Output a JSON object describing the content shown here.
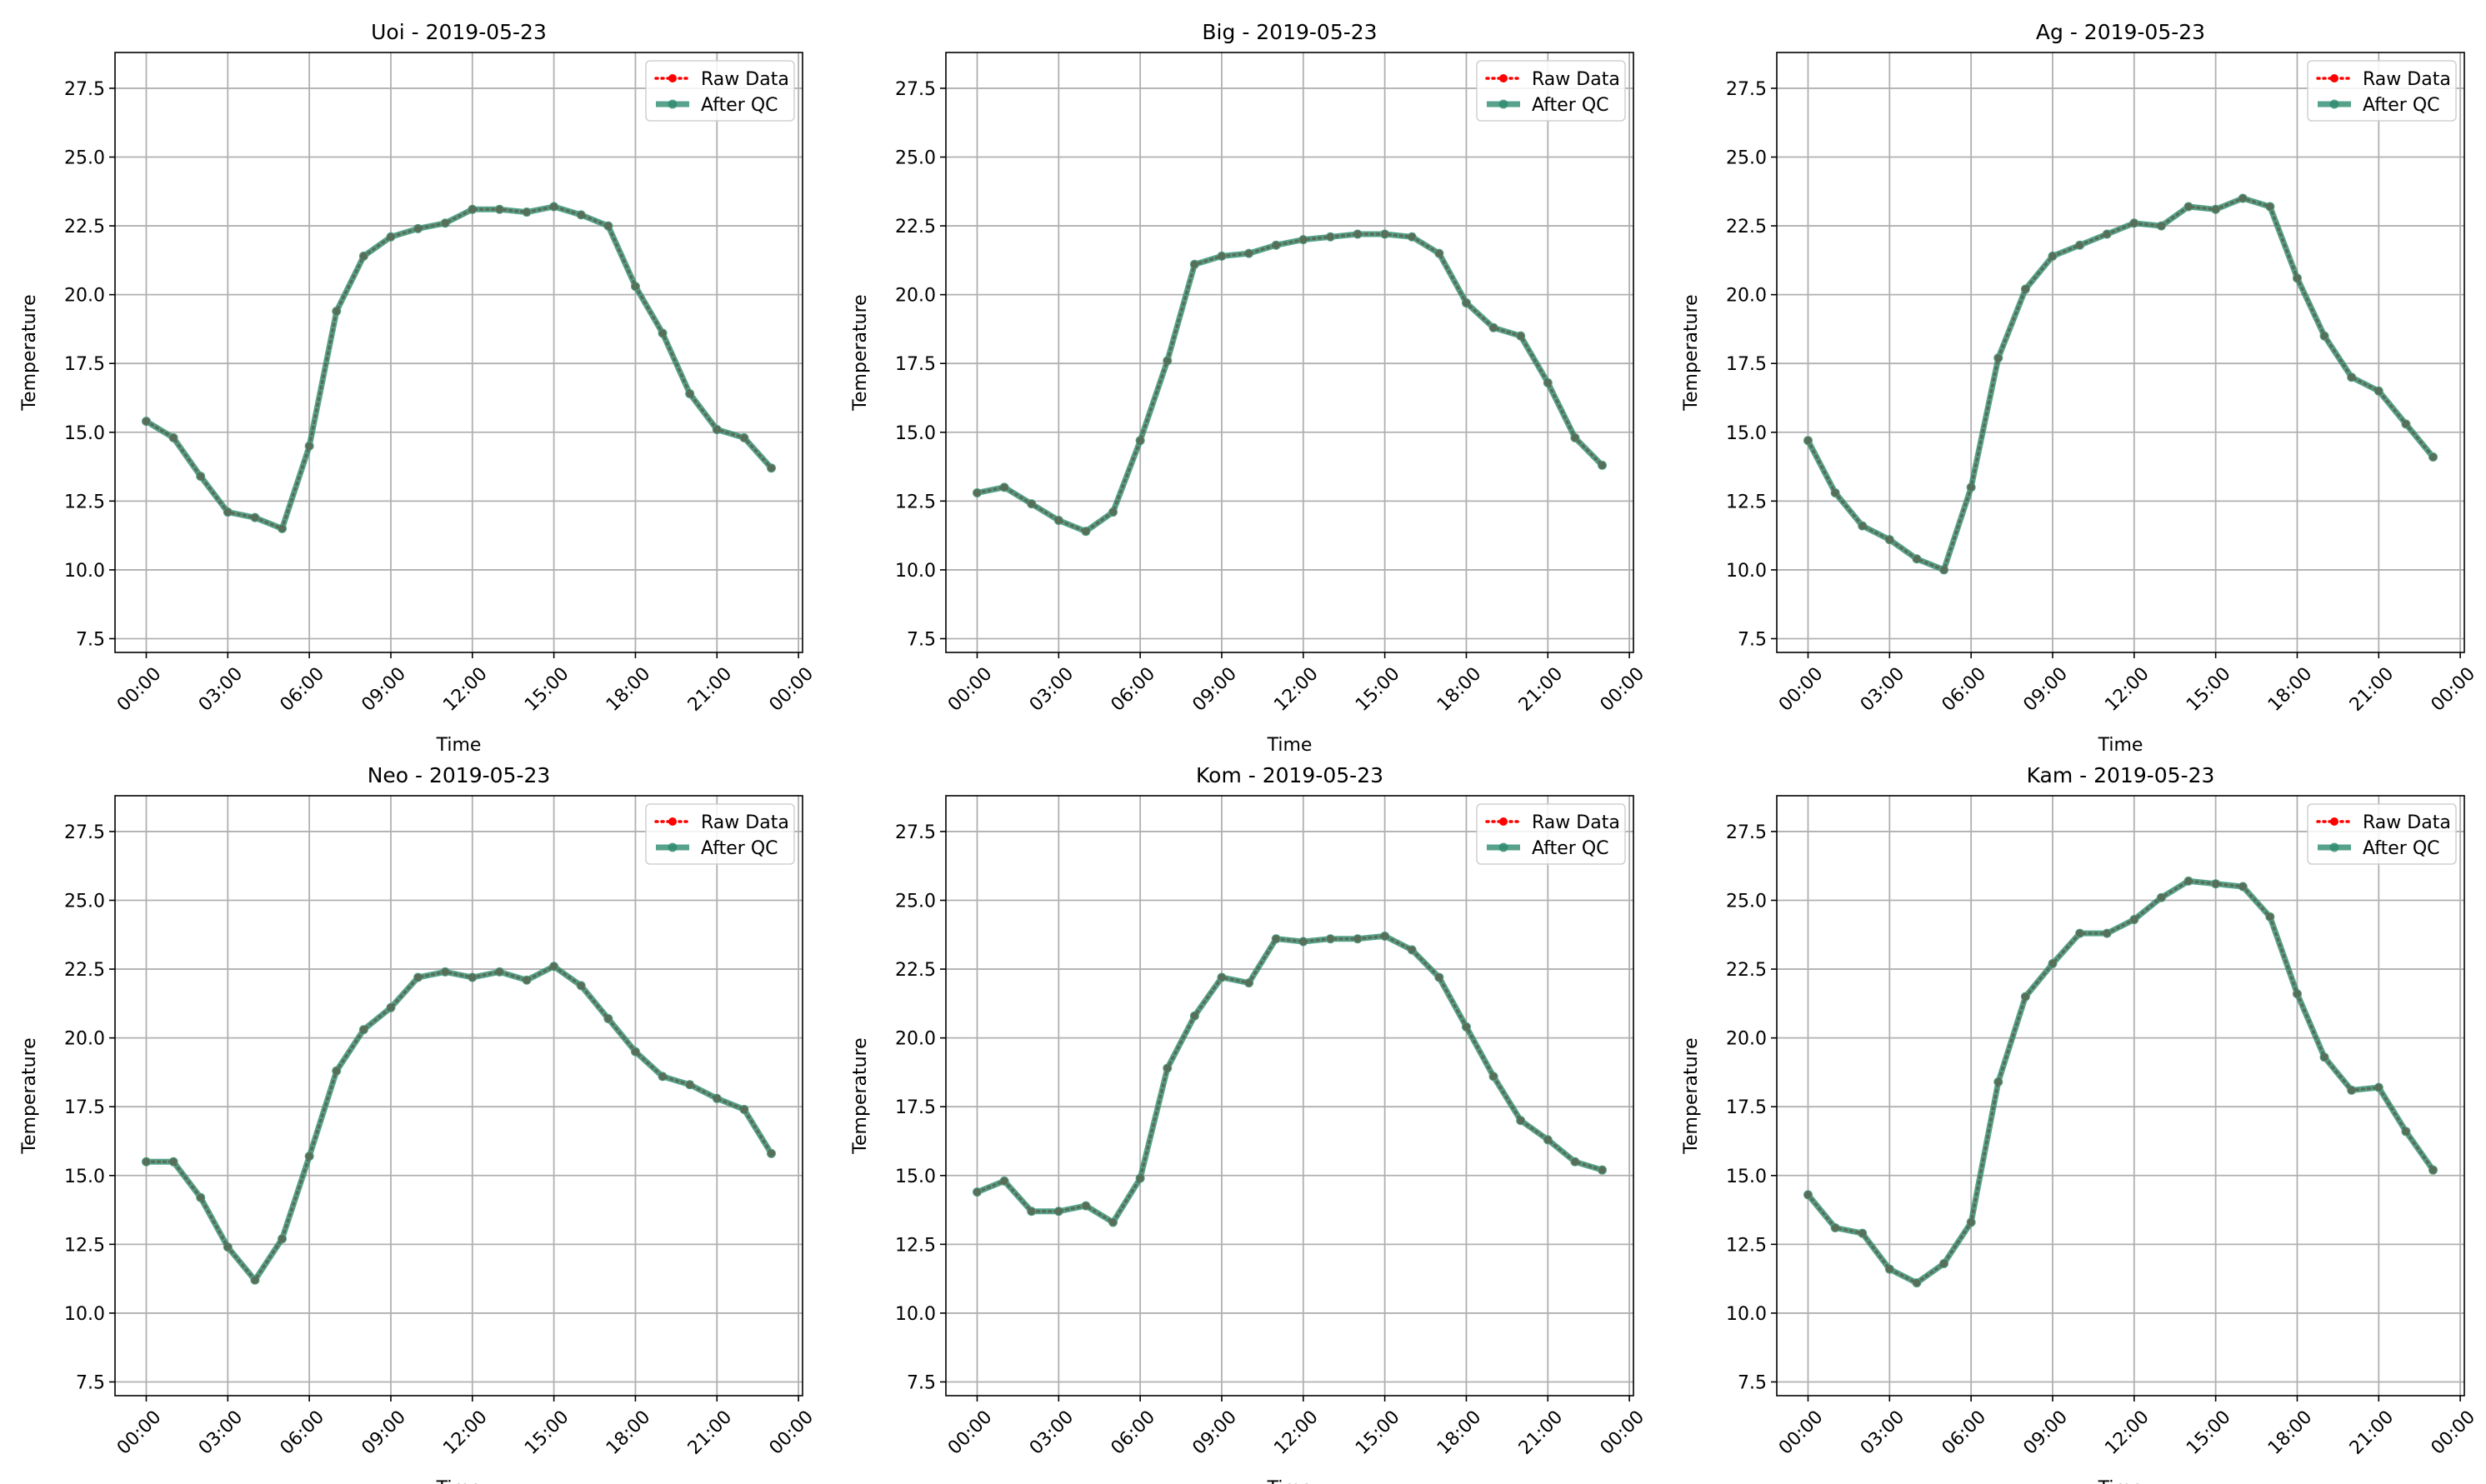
{
  "chart_data": [
    {
      "type": "line",
      "title": "Uoi - 2019-05-23",
      "xlabel": "Time",
      "ylabel": "Temperature",
      "xlim_hours": [
        -1.15,
        24.15
      ],
      "ylim": [
        7.0,
        28.8
      ],
      "x_ticks": [
        "00:00",
        "03:00",
        "06:00",
        "09:00",
        "12:00",
        "15:00",
        "18:00",
        "21:00",
        "00:00"
      ],
      "y_ticks": [
        "7.5",
        "10.0",
        "12.5",
        "15.0",
        "17.5",
        "20.0",
        "22.5",
        "25.0",
        "27.5"
      ],
      "grid": true,
      "legend_position": "top-right",
      "x_hours": [
        0,
        1,
        2,
        3,
        4,
        5,
        6,
        7,
        8,
        9,
        10,
        11,
        12,
        13,
        14,
        15,
        16,
        17,
        18,
        19,
        20,
        21,
        22,
        23
      ],
      "series": [
        {
          "name": "Raw Data",
          "style": "dotted",
          "color": "#ff0000",
          "values": [
            15.4,
            14.8,
            13.4,
            12.1,
            11.9,
            11.5,
            14.5,
            19.4,
            21.4,
            22.1,
            22.4,
            22.6,
            23.1,
            23.1,
            23.0,
            23.2,
            22.9,
            22.5,
            20.3,
            18.6,
            16.4,
            15.1,
            14.8,
            13.7
          ]
        },
        {
          "name": "After QC",
          "style": "solid",
          "color": "#2e8b6e",
          "values": [
            15.4,
            14.8,
            13.4,
            12.1,
            11.9,
            11.5,
            14.5,
            19.4,
            21.4,
            22.1,
            22.4,
            22.6,
            23.1,
            23.1,
            23.0,
            23.2,
            22.9,
            22.5,
            20.3,
            18.6,
            16.4,
            15.1,
            14.8,
            13.7
          ]
        }
      ]
    },
    {
      "type": "line",
      "title": "Big - 2019-05-23",
      "xlabel": "Time",
      "ylabel": "Temperature",
      "xlim_hours": [
        -1.15,
        24.15
      ],
      "ylim": [
        7.0,
        28.8
      ],
      "x_ticks": [
        "00:00",
        "03:00",
        "06:00",
        "09:00",
        "12:00",
        "15:00",
        "18:00",
        "21:00",
        "00:00"
      ],
      "y_ticks": [
        "7.5",
        "10.0",
        "12.5",
        "15.0",
        "17.5",
        "20.0",
        "22.5",
        "25.0",
        "27.5"
      ],
      "grid": true,
      "legend_position": "top-right",
      "x_hours": [
        0,
        1,
        2,
        3,
        4,
        5,
        6,
        7,
        8,
        9,
        10,
        11,
        12,
        13,
        14,
        15,
        16,
        17,
        18,
        19,
        20,
        21,
        22,
        23
      ],
      "series": [
        {
          "name": "Raw Data",
          "style": "dotted",
          "color": "#ff0000",
          "values": [
            12.8,
            13.0,
            12.4,
            11.8,
            11.4,
            12.1,
            14.7,
            17.6,
            21.1,
            21.4,
            21.5,
            21.8,
            22.0,
            22.1,
            22.2,
            22.2,
            22.1,
            21.5,
            19.7,
            18.8,
            18.5,
            16.8,
            14.8,
            13.8
          ]
        },
        {
          "name": "After QC",
          "style": "solid",
          "color": "#2e8b6e",
          "values": [
            12.8,
            13.0,
            12.4,
            11.8,
            11.4,
            12.1,
            14.7,
            17.6,
            21.1,
            21.4,
            21.5,
            21.8,
            22.0,
            22.1,
            22.2,
            22.2,
            22.1,
            21.5,
            19.7,
            18.8,
            18.5,
            16.8,
            14.8,
            13.8
          ]
        }
      ]
    },
    {
      "type": "line",
      "title": "Ag - 2019-05-23",
      "xlabel": "Time",
      "ylabel": "Temperature",
      "xlim_hours": [
        -1.15,
        24.15
      ],
      "ylim": [
        7.0,
        28.8
      ],
      "x_ticks": [
        "00:00",
        "03:00",
        "06:00",
        "09:00",
        "12:00",
        "15:00",
        "18:00",
        "21:00",
        "00:00"
      ],
      "y_ticks": [
        "7.5",
        "10.0",
        "12.5",
        "15.0",
        "17.5",
        "20.0",
        "22.5",
        "25.0",
        "27.5"
      ],
      "grid": true,
      "legend_position": "top-right",
      "x_hours": [
        0,
        1,
        2,
        3,
        4,
        5,
        6,
        7,
        8,
        9,
        10,
        11,
        12,
        13,
        14,
        15,
        16,
        17,
        18,
        19,
        20,
        21,
        22,
        23
      ],
      "series": [
        {
          "name": "Raw Data",
          "style": "dotted",
          "color": "#ff0000",
          "values": [
            14.7,
            12.8,
            11.6,
            11.1,
            10.4,
            10.0,
            13.0,
            17.7,
            20.2,
            21.4,
            21.8,
            22.2,
            22.6,
            22.5,
            23.2,
            23.1,
            23.5,
            23.2,
            20.6,
            18.5,
            17.0,
            16.5,
            15.3,
            14.1
          ]
        },
        {
          "name": "After QC",
          "style": "solid",
          "color": "#2e8b6e",
          "values": [
            14.7,
            12.8,
            11.6,
            11.1,
            10.4,
            10.0,
            13.0,
            17.7,
            20.2,
            21.4,
            21.8,
            22.2,
            22.6,
            22.5,
            23.2,
            23.1,
            23.5,
            23.2,
            20.6,
            18.5,
            17.0,
            16.5,
            15.3,
            14.1
          ]
        }
      ]
    },
    {
      "type": "line",
      "title": "Neo - 2019-05-23",
      "xlabel": "Time",
      "ylabel": "Temperature",
      "xlim_hours": [
        -1.15,
        24.15
      ],
      "ylim": [
        7.0,
        28.8
      ],
      "x_ticks": [
        "00:00",
        "03:00",
        "06:00",
        "09:00",
        "12:00",
        "15:00",
        "18:00",
        "21:00",
        "00:00"
      ],
      "y_ticks": [
        "7.5",
        "10.0",
        "12.5",
        "15.0",
        "17.5",
        "20.0",
        "22.5",
        "25.0",
        "27.5"
      ],
      "grid": true,
      "legend_position": "top-right",
      "x_hours": [
        0,
        1,
        2,
        3,
        4,
        5,
        6,
        7,
        8,
        9,
        10,
        11,
        12,
        13,
        14,
        15,
        16,
        17,
        18,
        19,
        20,
        21,
        22,
        23
      ],
      "series": [
        {
          "name": "Raw Data",
          "style": "dotted",
          "color": "#ff0000",
          "values": [
            15.5,
            15.5,
            14.2,
            12.4,
            11.2,
            12.7,
            15.7,
            18.8,
            20.3,
            21.1,
            22.2,
            22.4,
            22.2,
            22.4,
            22.1,
            22.6,
            21.9,
            20.7,
            19.5,
            18.6,
            18.3,
            17.8,
            17.4,
            15.8
          ]
        },
        {
          "name": "After QC",
          "style": "solid",
          "color": "#2e8b6e",
          "values": [
            15.5,
            15.5,
            14.2,
            12.4,
            11.2,
            12.7,
            15.7,
            18.8,
            20.3,
            21.1,
            22.2,
            22.4,
            22.2,
            22.4,
            22.1,
            22.6,
            21.9,
            20.7,
            19.5,
            18.6,
            18.3,
            17.8,
            17.4,
            15.8
          ]
        }
      ]
    },
    {
      "type": "line",
      "title": "Kom - 2019-05-23",
      "xlabel": "Time",
      "ylabel": "Temperature",
      "xlim_hours": [
        -1.15,
        24.15
      ],
      "ylim": [
        7.0,
        28.8
      ],
      "x_ticks": [
        "00:00",
        "03:00",
        "06:00",
        "09:00",
        "12:00",
        "15:00",
        "18:00",
        "21:00",
        "00:00"
      ],
      "y_ticks": [
        "7.5",
        "10.0",
        "12.5",
        "15.0",
        "17.5",
        "20.0",
        "22.5",
        "25.0",
        "27.5"
      ],
      "grid": true,
      "legend_position": "top-right",
      "x_hours": [
        0,
        1,
        2,
        3,
        4,
        5,
        6,
        7,
        8,
        9,
        10,
        11,
        12,
        13,
        14,
        15,
        16,
        17,
        18,
        19,
        20,
        21,
        22,
        23
      ],
      "series": [
        {
          "name": "Raw Data",
          "style": "dotted",
          "color": "#ff0000",
          "values": [
            14.4,
            14.8,
            13.7,
            13.7,
            13.9,
            13.3,
            14.9,
            18.9,
            20.8,
            22.2,
            22.0,
            23.6,
            23.5,
            23.6,
            23.6,
            23.7,
            23.2,
            22.2,
            20.4,
            18.6,
            17.0,
            16.3,
            15.5,
            15.2
          ]
        },
        {
          "name": "After QC",
          "style": "solid",
          "color": "#2e8b6e",
          "values": [
            14.4,
            14.8,
            13.7,
            13.7,
            13.9,
            13.3,
            14.9,
            18.9,
            20.8,
            22.2,
            22.0,
            23.6,
            23.5,
            23.6,
            23.6,
            23.7,
            23.2,
            22.2,
            20.4,
            18.6,
            17.0,
            16.3,
            15.5,
            15.2
          ]
        }
      ]
    },
    {
      "type": "line",
      "title": "Kam - 2019-05-23",
      "xlabel": "Time",
      "ylabel": "Temperature",
      "xlim_hours": [
        -1.15,
        24.15
      ],
      "ylim": [
        7.0,
        28.8
      ],
      "x_ticks": [
        "00:00",
        "03:00",
        "06:00",
        "09:00",
        "12:00",
        "15:00",
        "18:00",
        "21:00",
        "00:00"
      ],
      "y_ticks": [
        "7.5",
        "10.0",
        "12.5",
        "15.0",
        "17.5",
        "20.0",
        "22.5",
        "25.0",
        "27.5"
      ],
      "grid": true,
      "legend_position": "top-right",
      "x_hours": [
        0,
        1,
        2,
        3,
        4,
        5,
        6,
        7,
        8,
        9,
        10,
        11,
        12,
        13,
        14,
        15,
        16,
        17,
        18,
        19,
        20,
        21,
        22,
        23
      ],
      "series": [
        {
          "name": "Raw Data",
          "style": "dotted",
          "color": "#ff0000",
          "values": [
            14.3,
            13.1,
            12.9,
            11.6,
            11.1,
            11.8,
            13.3,
            18.4,
            21.5,
            22.7,
            23.8,
            23.8,
            24.3,
            25.1,
            25.7,
            25.6,
            25.5,
            24.4,
            21.6,
            19.3,
            18.1,
            18.2,
            16.6,
            15.2
          ]
        },
        {
          "name": "After QC",
          "style": "solid",
          "color": "#2e8b6e",
          "values": [
            14.3,
            13.1,
            12.9,
            11.6,
            11.1,
            11.8,
            13.3,
            18.4,
            21.5,
            22.7,
            23.8,
            23.8,
            24.3,
            25.1,
            25.7,
            25.6,
            25.5,
            24.4,
            21.6,
            19.3,
            18.1,
            18.2,
            16.6,
            15.2
          ]
        }
      ]
    }
  ]
}
